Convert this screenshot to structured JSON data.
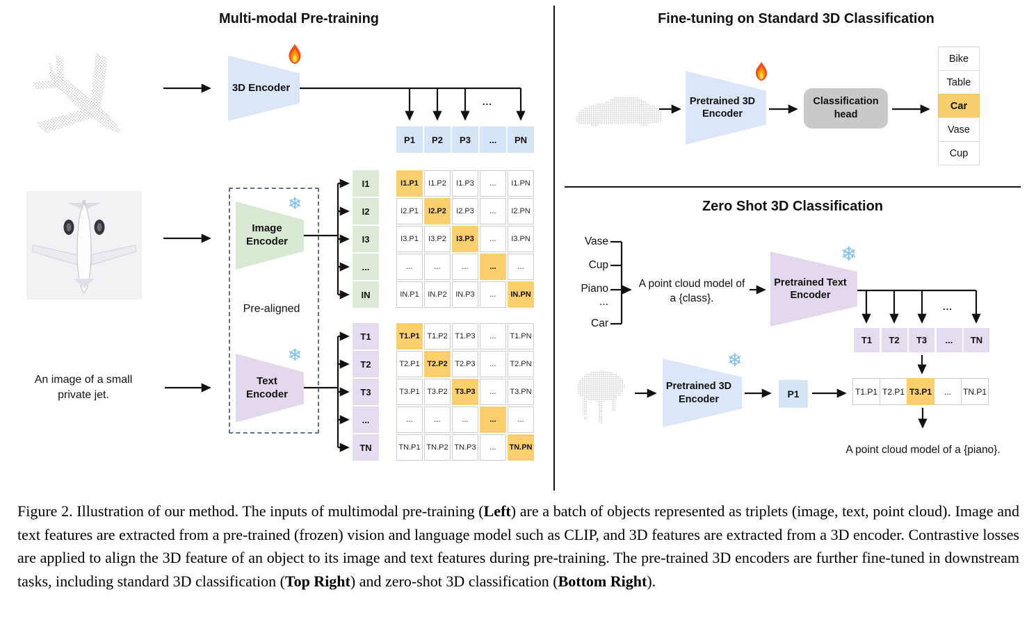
{
  "left": {
    "title": "Multi-modal Pre-training",
    "encoder3d_label": "3D Encoder",
    "image_encoder": {
      "line1": "Image",
      "line2": "Encoder"
    },
    "text_encoder": {
      "line1": "Text",
      "line2": "Encoder"
    },
    "pre_aligned": "Pre-aligned",
    "text_input": {
      "line1": "An image of a small",
      "line2": "private jet."
    },
    "feature_dots": "...",
    "p_row": [
      "P1",
      "P2",
      "P3",
      "...",
      "PN"
    ],
    "i_labels": [
      "I1",
      "I2",
      "I3",
      "...",
      "IN"
    ],
    "i_matrix": [
      [
        "I1.P1",
        "I1.P2",
        "I1.P3",
        "...",
        "I1.PN"
      ],
      [
        "I2.P1",
        "I2.P2",
        "I2.P3",
        "...",
        "I2.PN"
      ],
      [
        "I3.P1",
        "I3.P2",
        "I3.P3",
        "...",
        "I3.PN"
      ],
      [
        "...",
        "...",
        "...",
        "...",
        "..."
      ],
      [
        "IN.P1",
        "IN.P2",
        "IN.P3",
        "...",
        "IN.PN"
      ]
    ],
    "t_labels": [
      "T1",
      "T2",
      "T3",
      "...",
      "TN"
    ],
    "t_matrix": [
      [
        "T1.P1",
        "T1.P2",
        "T1.P3",
        "...",
        "T1.PN"
      ],
      [
        "T2.P1",
        "T2.P2",
        "T2.P3",
        "...",
        "T2.PN"
      ],
      [
        "T3.P1",
        "T3.P2",
        "T3.P3",
        "...",
        "T3.PN"
      ],
      [
        "...",
        "...",
        "...",
        "...",
        "..."
      ],
      [
        "TN.P1",
        "TN.P2",
        "TN.P3",
        "...",
        "TN.PN"
      ]
    ]
  },
  "top_right": {
    "title": "Fine-tuning on Standard 3D Classification",
    "encoder": {
      "line1": "Pretrained 3D",
      "line2": "Encoder"
    },
    "head": {
      "line1": "Classification",
      "line2": "head"
    },
    "classes": [
      {
        "label": "Bike",
        "highlight": false
      },
      {
        "label": "Table",
        "highlight": false
      },
      {
        "label": "Car",
        "highlight": true
      },
      {
        "label": "Vase",
        "highlight": false
      },
      {
        "label": "Cup",
        "highlight": false
      }
    ]
  },
  "bottom_right": {
    "title": "Zero Shot 3D Classification",
    "classes": [
      "Vase",
      "Cup",
      "Piano",
      "...",
      "Car"
    ],
    "prompt": {
      "line1": "A point cloud model of",
      "line2": "a {class}."
    },
    "text_encoder": {
      "line1": "Pretrained Text",
      "line2": "Encoder"
    },
    "t_row": [
      "T1",
      "T2",
      "T3",
      "...",
      "TN"
    ],
    "feature_dots": "...",
    "encoder3d": {
      "line1": "Pretrained 3D",
      "line2": "Encoder"
    },
    "p1_label": "P1",
    "tp_row": [
      {
        "label": "T1.P1",
        "highlight": false
      },
      {
        "label": "T2.P1",
        "highlight": false
      },
      {
        "label": "T3.P1",
        "highlight": true
      },
      {
        "label": "...",
        "highlight": false
      },
      {
        "label": "TN.P1",
        "highlight": false
      }
    ],
    "result_text": "A point cloud model of a {piano}."
  },
  "icons": {
    "snowflake_glyph": "❄"
  },
  "colors": {
    "encoder_blue": "#dbe7f8",
    "encoder_green": "#d9e8d3",
    "encoder_purple": "#e3d7ec",
    "highlight_orange": "#fbce6e",
    "head_gray": "#c9c9c9"
  },
  "caption": {
    "segments": [
      {
        "t": "Figure 2. Illustration of our method. The inputs of multimodal pre-training (",
        "b": false
      },
      {
        "t": "Left",
        "b": true
      },
      {
        "t": ") are a batch of objects represented as triplets (image, text, point cloud).  Image and text features are extracted from a pre-trained (frozen) vision and language model such as CLIP, and 3D features are extracted from a 3D encoder.  Contrastive losses are applied to align the 3D feature of an object to its image and text features during pre-training.  The pre-trained 3D encoders are further fine-tuned in downstream tasks, including standard 3D classification (",
        "b": false
      },
      {
        "t": "Top Right",
        "b": true
      },
      {
        "t": ") and zero-shot 3D classification (",
        "b": false
      },
      {
        "t": "Bottom Right",
        "b": true
      },
      {
        "t": ").",
        "b": false
      }
    ]
  }
}
